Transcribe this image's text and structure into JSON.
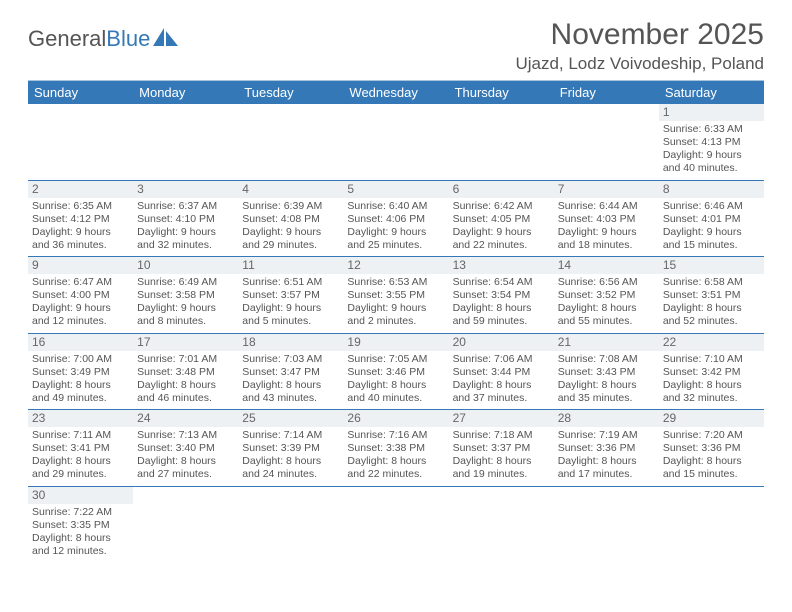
{
  "brand": {
    "part1": "General",
    "part2": "Blue"
  },
  "header": {
    "month_title": "November 2025",
    "location": "Ujazd, Lodz Voivodeship, Poland"
  },
  "colors": {
    "header_bg": "#3478b7",
    "header_fg": "#ffffff",
    "rule": "#3478b7",
    "daynum_bg": "#eef1f3",
    "text": "#555555"
  },
  "weekdays": [
    "Sunday",
    "Monday",
    "Tuesday",
    "Wednesday",
    "Thursday",
    "Friday",
    "Saturday"
  ],
  "labels": {
    "sunrise": "Sunrise:",
    "sunset": "Sunset:",
    "daylight": "Daylight:"
  },
  "weeks": [
    [
      null,
      null,
      null,
      null,
      null,
      null,
      {
        "n": "1",
        "sunrise": "6:33 AM",
        "sunset": "4:13 PM",
        "daylight": "9 hours and 40 minutes."
      }
    ],
    [
      {
        "n": "2",
        "sunrise": "6:35 AM",
        "sunset": "4:12 PM",
        "daylight": "9 hours and 36 minutes."
      },
      {
        "n": "3",
        "sunrise": "6:37 AM",
        "sunset": "4:10 PM",
        "daylight": "9 hours and 32 minutes."
      },
      {
        "n": "4",
        "sunrise": "6:39 AM",
        "sunset": "4:08 PM",
        "daylight": "9 hours and 29 minutes."
      },
      {
        "n": "5",
        "sunrise": "6:40 AM",
        "sunset": "4:06 PM",
        "daylight": "9 hours and 25 minutes."
      },
      {
        "n": "6",
        "sunrise": "6:42 AM",
        "sunset": "4:05 PM",
        "daylight": "9 hours and 22 minutes."
      },
      {
        "n": "7",
        "sunrise": "6:44 AM",
        "sunset": "4:03 PM",
        "daylight": "9 hours and 18 minutes."
      },
      {
        "n": "8",
        "sunrise": "6:46 AM",
        "sunset": "4:01 PM",
        "daylight": "9 hours and 15 minutes."
      }
    ],
    [
      {
        "n": "9",
        "sunrise": "6:47 AM",
        "sunset": "4:00 PM",
        "daylight": "9 hours and 12 minutes."
      },
      {
        "n": "10",
        "sunrise": "6:49 AM",
        "sunset": "3:58 PM",
        "daylight": "9 hours and 8 minutes."
      },
      {
        "n": "11",
        "sunrise": "6:51 AM",
        "sunset": "3:57 PM",
        "daylight": "9 hours and 5 minutes."
      },
      {
        "n": "12",
        "sunrise": "6:53 AM",
        "sunset": "3:55 PM",
        "daylight": "9 hours and 2 minutes."
      },
      {
        "n": "13",
        "sunrise": "6:54 AM",
        "sunset": "3:54 PM",
        "daylight": "8 hours and 59 minutes."
      },
      {
        "n": "14",
        "sunrise": "6:56 AM",
        "sunset": "3:52 PM",
        "daylight": "8 hours and 55 minutes."
      },
      {
        "n": "15",
        "sunrise": "6:58 AM",
        "sunset": "3:51 PM",
        "daylight": "8 hours and 52 minutes."
      }
    ],
    [
      {
        "n": "16",
        "sunrise": "7:00 AM",
        "sunset": "3:49 PM",
        "daylight": "8 hours and 49 minutes."
      },
      {
        "n": "17",
        "sunrise": "7:01 AM",
        "sunset": "3:48 PM",
        "daylight": "8 hours and 46 minutes."
      },
      {
        "n": "18",
        "sunrise": "7:03 AM",
        "sunset": "3:47 PM",
        "daylight": "8 hours and 43 minutes."
      },
      {
        "n": "19",
        "sunrise": "7:05 AM",
        "sunset": "3:46 PM",
        "daylight": "8 hours and 40 minutes."
      },
      {
        "n": "20",
        "sunrise": "7:06 AM",
        "sunset": "3:44 PM",
        "daylight": "8 hours and 37 minutes."
      },
      {
        "n": "21",
        "sunrise": "7:08 AM",
        "sunset": "3:43 PM",
        "daylight": "8 hours and 35 minutes."
      },
      {
        "n": "22",
        "sunrise": "7:10 AM",
        "sunset": "3:42 PM",
        "daylight": "8 hours and 32 minutes."
      }
    ],
    [
      {
        "n": "23",
        "sunrise": "7:11 AM",
        "sunset": "3:41 PM",
        "daylight": "8 hours and 29 minutes."
      },
      {
        "n": "24",
        "sunrise": "7:13 AM",
        "sunset": "3:40 PM",
        "daylight": "8 hours and 27 minutes."
      },
      {
        "n": "25",
        "sunrise": "7:14 AM",
        "sunset": "3:39 PM",
        "daylight": "8 hours and 24 minutes."
      },
      {
        "n": "26",
        "sunrise": "7:16 AM",
        "sunset": "3:38 PM",
        "daylight": "8 hours and 22 minutes."
      },
      {
        "n": "27",
        "sunrise": "7:18 AM",
        "sunset": "3:37 PM",
        "daylight": "8 hours and 19 minutes."
      },
      {
        "n": "28",
        "sunrise": "7:19 AM",
        "sunset": "3:36 PM",
        "daylight": "8 hours and 17 minutes."
      },
      {
        "n": "29",
        "sunrise": "7:20 AM",
        "sunset": "3:36 PM",
        "daylight": "8 hours and 15 minutes."
      }
    ],
    [
      {
        "n": "30",
        "sunrise": "7:22 AM",
        "sunset": "3:35 PM",
        "daylight": "8 hours and 12 minutes."
      },
      null,
      null,
      null,
      null,
      null,
      null
    ]
  ]
}
